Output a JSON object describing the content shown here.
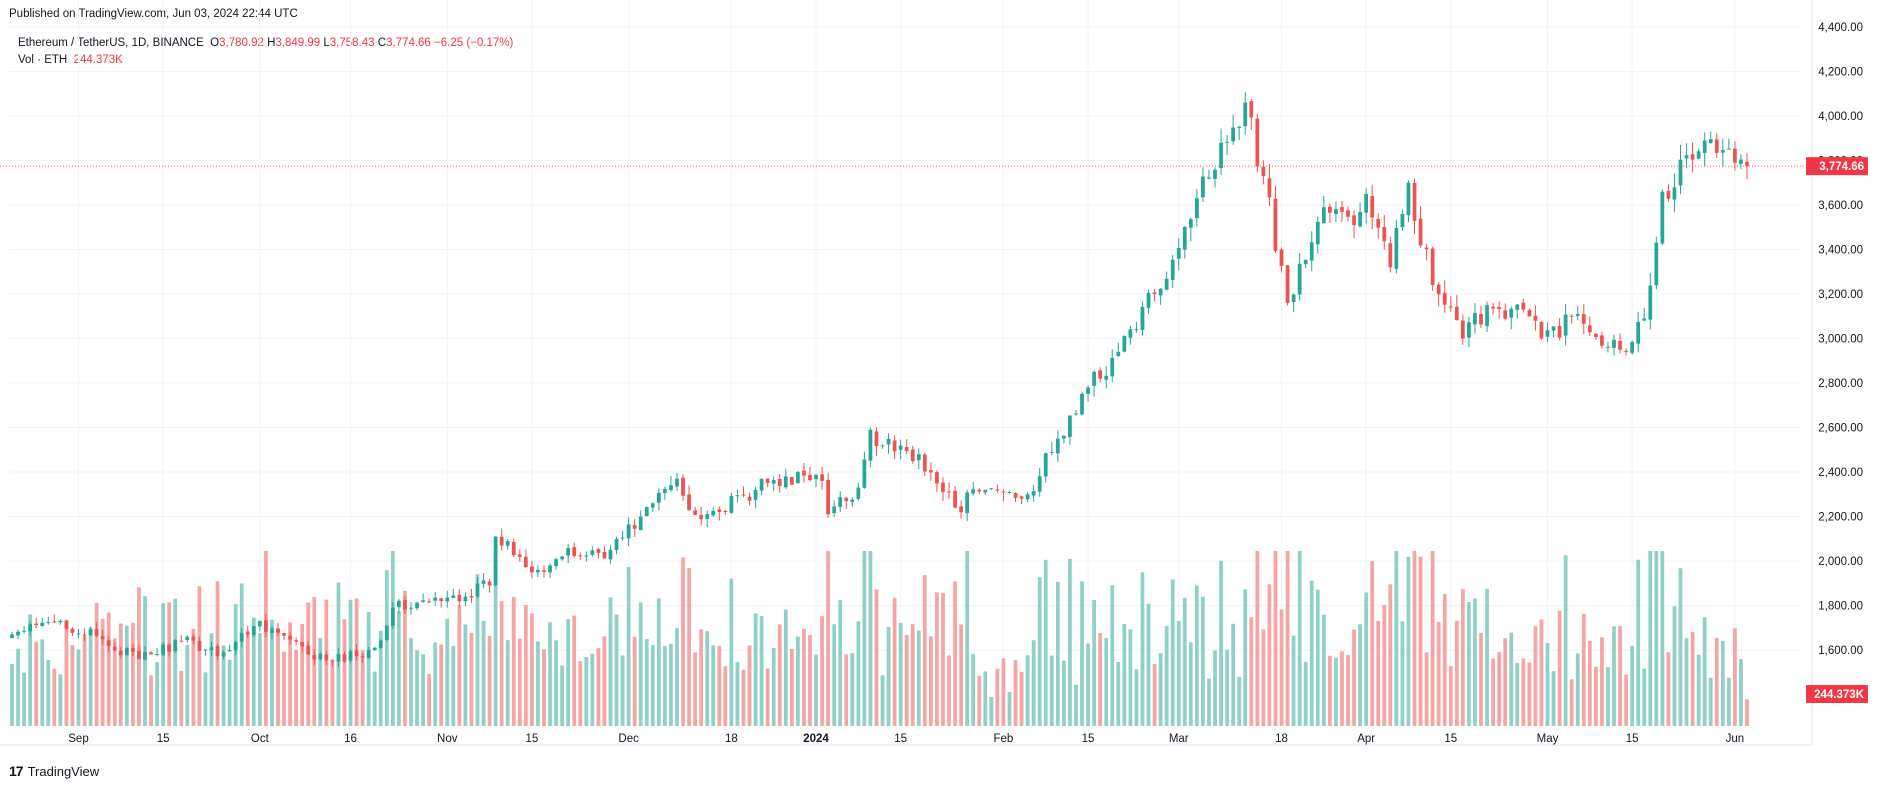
{
  "header": {
    "published": "Published on TradingView.com, Jun 03, 2024 22:44 UTC"
  },
  "legend": {
    "symbol": "Ethereum / TetherUS, 1D, BINANCE",
    "o_label": "O",
    "o": "3,780.92",
    "h_label": "H",
    "h": "3,849.99",
    "l_label": "L",
    "l": "3,758.43",
    "c_label": "C",
    "c": "3,774.66",
    "change": "−6.25 (−0.17%)",
    "vol_label": "Vol · ETH",
    "vol": "244.373K"
  },
  "price_tag": "3,774.66",
  "volume_tag": "244.373K",
  "footer": {
    "brand": "TradingView",
    "logo": "17"
  },
  "colors": {
    "up": "#26a69a",
    "down": "#ef5350",
    "up_vol": "#8fd1c8",
    "down_vol": "#f5a6a4",
    "grid": "#f0f3fa",
    "text": "#131722"
  },
  "chart_data": {
    "type": "candlestick",
    "title": "Ethereum / TetherUS, 1D, BINANCE",
    "x_ticks": [
      "Sep",
      "15",
      "Oct",
      "16",
      "Nov",
      "15",
      "Dec",
      "18",
      "2024",
      "15",
      "Feb",
      "15",
      "Mar",
      "18",
      "Apr",
      "15",
      "May",
      "15",
      "Jun"
    ],
    "y_ticks": [
      "4,400.00",
      "4,200.00",
      "4,000.00",
      "3,800.00",
      "3,600.00",
      "3,400.00",
      "3,200.00",
      "3,000.00",
      "2,800.00",
      "2,600.00",
      "2,400.00",
      "2,200.00",
      "2,000.00",
      "1,800.00",
      "1,600.00"
    ],
    "ylim": [
      1500,
      4400
    ],
    "last_price": 3774.66,
    "start_date": "2023-08-21",
    "end_date": "2024-06-03",
    "close_keypoints": [
      [
        "2023-08-21",
        1670
      ],
      [
        "2023-08-29",
        1730
      ],
      [
        "2023-09-11",
        1560
      ],
      [
        "2023-09-18",
        1640
      ],
      [
        "2023-09-25",
        1590
      ],
      [
        "2023-10-01",
        1730
      ],
      [
        "2023-10-09",
        1580
      ],
      [
        "2023-10-13",
        1550
      ],
      [
        "2023-10-20",
        1610
      ],
      [
        "2023-10-23",
        1790
      ],
      [
        "2023-10-31",
        1820
      ],
      [
        "2023-11-08",
        1890
      ],
      [
        "2023-11-09",
        2110
      ],
      [
        "2023-11-16",
        1960
      ],
      [
        "2023-11-20",
        2020
      ],
      [
        "2023-11-28",
        2050
      ],
      [
        "2023-12-03",
        2200
      ],
      [
        "2023-12-09",
        2370
      ],
      [
        "2023-12-11",
        2230
      ],
      [
        "2023-12-16",
        2220
      ],
      [
        "2023-12-22",
        2320
      ],
      [
        "2023-12-27",
        2380
      ],
      [
        "2024-01-02",
        2360
      ],
      [
        "2024-01-03",
        2210
      ],
      [
        "2024-01-08",
        2330
      ],
      [
        "2024-01-10",
        2590
      ],
      [
        "2024-01-12",
        2520
      ],
      [
        "2024-01-18",
        2480
      ],
      [
        "2024-01-22",
        2310
      ],
      [
        "2024-01-24",
        2240
      ],
      [
        "2024-01-29",
        2320
      ],
      [
        "2024-02-05",
        2300
      ],
      [
        "2024-02-09",
        2490
      ],
      [
        "2024-02-15",
        2780
      ],
      [
        "2024-02-20",
        2940
      ],
      [
        "2024-02-26",
        3200
      ],
      [
        "2024-03-04",
        3630
      ],
      [
        "2024-03-08",
        3880
      ],
      [
        "2024-03-12",
        4060
      ],
      [
        "2024-03-15",
        3730
      ],
      [
        "2024-03-19",
        3160
      ],
      [
        "2024-03-25",
        3590
      ],
      [
        "2024-03-30",
        3510
      ],
      [
        "2024-04-01",
        3650
      ],
      [
        "2024-04-05",
        3320
      ],
      [
        "2024-04-08",
        3700
      ],
      [
        "2024-04-12",
        3240
      ],
      [
        "2024-04-17",
        3000
      ],
      [
        "2024-04-21",
        3150
      ],
      [
        "2024-04-27",
        3130
      ],
      [
        "2024-04-30",
        3000
      ],
      [
        "2024-05-06",
        3110
      ],
      [
        "2024-05-13",
        2950
      ],
      [
        "2024-05-17",
        3090
      ],
      [
        "2024-05-20",
        3660
      ],
      [
        "2024-05-27",
        3890
      ],
      [
        "2024-06-01",
        3790
      ],
      [
        "2024-06-03",
        3774.66
      ]
    ],
    "volume_ylim": [
      0,
      1.05
    ]
  }
}
